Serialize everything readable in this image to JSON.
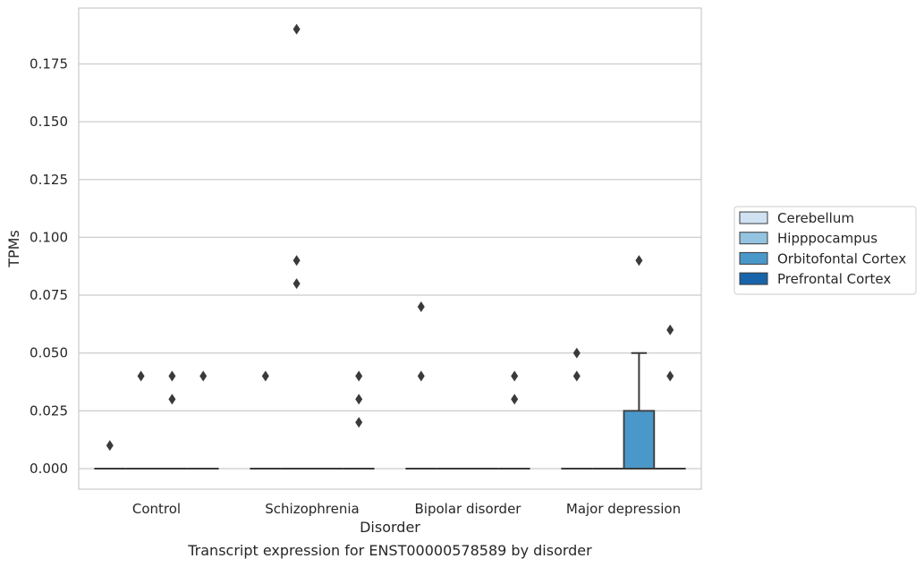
{
  "chart_data": {
    "type": "box",
    "xlabel": "Disorder",
    "ylabel": "TPMs",
    "caption": "Transcript expression for ENST00000578589 by disorder",
    "categories": [
      "Control",
      "Schizophrenia",
      "Bipolar disorder",
      "Major depression"
    ],
    "ylim": [
      -0.0095,
      0.1985
    ],
    "yticks": [
      "0.000",
      "0.025",
      "0.050",
      "0.075",
      "0.100",
      "0.125",
      "0.150",
      "0.175"
    ],
    "grid": "horizontal",
    "legend_placement": "right",
    "series": [
      {
        "name": "Cerebellum",
        "color": "#d0e1f2",
        "boxes": [
          {
            "q1": 0,
            "median": 0,
            "q3": 0,
            "whisker_low": 0,
            "whisker_high": 0,
            "outliers": [
              0.01
            ]
          },
          {
            "q1": 0,
            "median": 0,
            "q3": 0,
            "whisker_low": 0,
            "whisker_high": 0,
            "outliers": [
              0.04
            ]
          },
          {
            "q1": 0,
            "median": 0,
            "q3": 0,
            "whisker_low": 0,
            "whisker_high": 0,
            "outliers": [
              0.04,
              0.07
            ]
          },
          {
            "q1": 0,
            "median": 0,
            "q3": 0,
            "whisker_low": 0,
            "whisker_high": 0,
            "outliers": [
              0.04,
              0.05
            ]
          }
        ]
      },
      {
        "name": "Hipppocampus",
        "color": "#94c4df",
        "boxes": [
          {
            "q1": 0,
            "median": 0,
            "q3": 0,
            "whisker_low": 0,
            "whisker_high": 0,
            "outliers": [
              0.04
            ]
          },
          {
            "q1": 0,
            "median": 0,
            "q3": 0,
            "whisker_low": 0,
            "whisker_high": 0,
            "outliers": [
              0.08,
              0.09,
              0.19
            ]
          },
          {
            "q1": 0,
            "median": 0,
            "q3": 0,
            "whisker_low": 0,
            "whisker_high": 0,
            "outliers": []
          },
          {
            "q1": 0,
            "median": 0,
            "q3": 0,
            "whisker_low": 0,
            "whisker_high": 0,
            "outliers": []
          }
        ]
      },
      {
        "name": "Orbitofontal Cortex",
        "color": "#4a98c9",
        "boxes": [
          {
            "q1": 0,
            "median": 0,
            "q3": 0,
            "whisker_low": 0,
            "whisker_high": 0,
            "outliers": [
              0.03,
              0.04
            ]
          },
          {
            "q1": 0,
            "median": 0,
            "q3": 0,
            "whisker_low": 0,
            "whisker_high": 0,
            "outliers": []
          },
          {
            "q1": 0,
            "median": 0,
            "q3": 0,
            "whisker_low": 0,
            "whisker_high": 0,
            "outliers": []
          },
          {
            "q1": 0,
            "median": 0,
            "q3": 0.025,
            "whisker_low": 0,
            "whisker_high": 0.05,
            "outliers": [
              0.09
            ]
          }
        ]
      },
      {
        "name": "Prefrontal Cortex",
        "color": "#1764ab",
        "boxes": [
          {
            "q1": 0,
            "median": 0,
            "q3": 0,
            "whisker_low": 0,
            "whisker_high": 0,
            "outliers": [
              0.04
            ]
          },
          {
            "q1": 0,
            "median": 0,
            "q3": 0,
            "whisker_low": 0,
            "whisker_high": 0,
            "outliers": [
              0.02,
              0.03,
              0.04
            ]
          },
          {
            "q1": 0,
            "median": 0,
            "q3": 0,
            "whisker_low": 0,
            "whisker_high": 0,
            "outliers": [
              0.03,
              0.04
            ]
          },
          {
            "q1": 0,
            "median": 0,
            "q3": 0,
            "whisker_low": 0,
            "whisker_high": 0,
            "outliers": [
              0.04,
              0.06
            ]
          }
        ]
      }
    ]
  }
}
